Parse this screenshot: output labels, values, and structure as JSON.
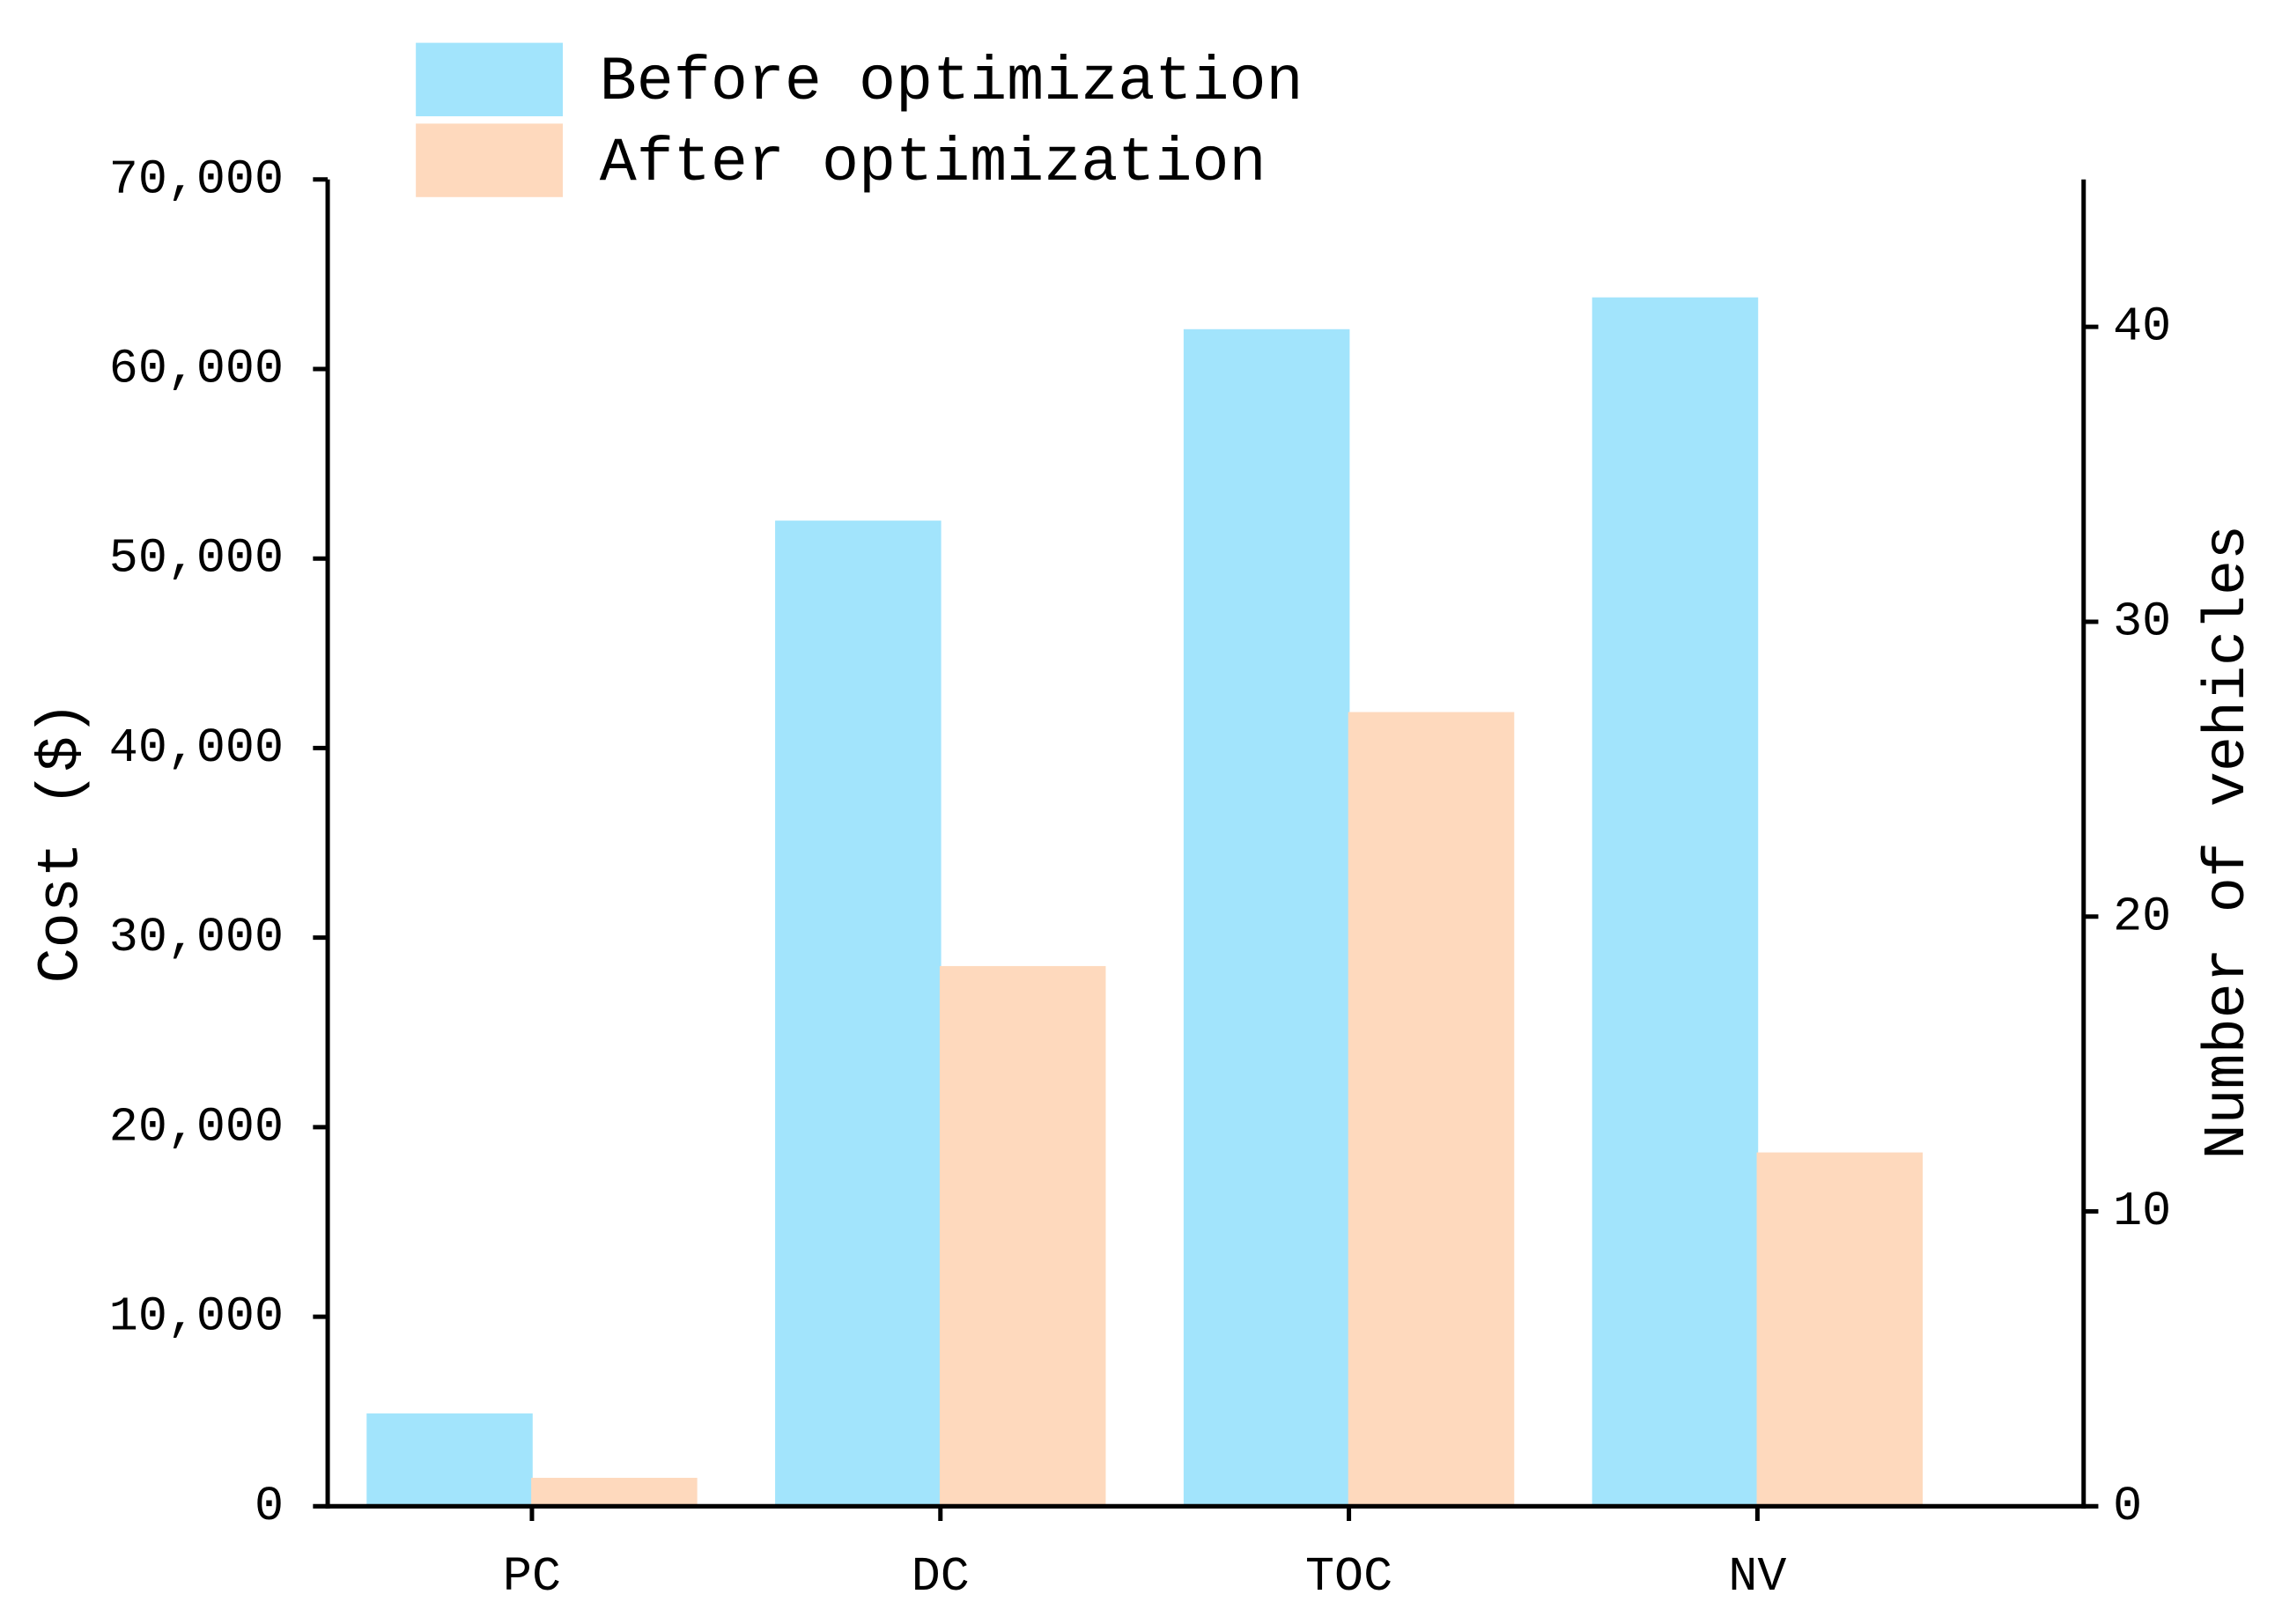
{
  "chart_data": {
    "type": "bar",
    "categories": [
      "PC",
      "DC",
      "TOC",
      "NV"
    ],
    "category_axis": [
      "y",
      "y",
      "y",
      "y2"
    ],
    "series": [
      {
        "name": "Before optimization",
        "color": "#a2e4fc",
        "values": [
          4900,
          52000,
          62100,
          41
        ]
      },
      {
        "name": "After optimization",
        "color": "#fed9bd",
        "values": [
          1500,
          28500,
          41900,
          12
        ]
      }
    ],
    "ylabel": "Cost ($)",
    "y2label": "Number of vehicles",
    "ylim": [
      0,
      70000
    ],
    "yticks": [
      0,
      {
        "value": 10000,
        "label": "10,000"
      },
      {
        "value": 20000,
        "label": "20,000"
      },
      {
        "value": 30000,
        "label": "30,000"
      },
      {
        "value": 40000,
        "label": "40,000"
      },
      {
        "value": 50000,
        "label": "50,000"
      },
      {
        "value": 60000,
        "label": "60,000"
      },
      {
        "value": 70000,
        "label": "70,000"
      }
    ],
    "y2lim": [
      0,
      45
    ],
    "y2ticks": [
      0,
      10,
      20,
      30,
      40
    ],
    "legend": "top-left",
    "grid": false
  }
}
